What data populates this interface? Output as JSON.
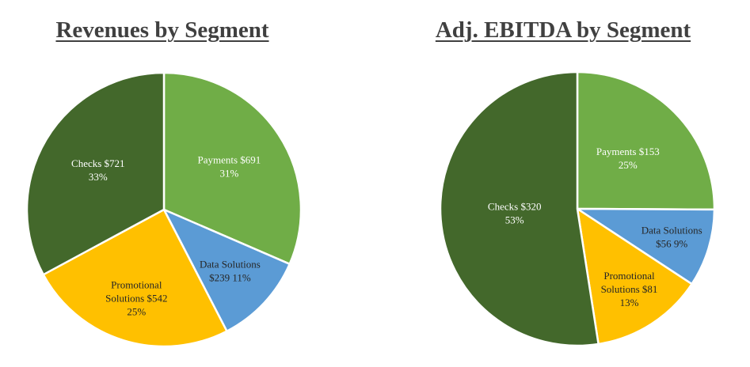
{
  "chart_data": [
    {
      "type": "pie",
      "title": "Revenues by Segment",
      "slices": [
        {
          "name": "Payments",
          "value": 691,
          "percent": "31%",
          "label_lines": [
            "Payments $691",
            "31%"
          ],
          "color": "#70ad47",
          "label_color": "#ffffff"
        },
        {
          "name": "Data Solutions",
          "value": 239,
          "percent": "11%",
          "label_lines": [
            "Data Solutions",
            "$239  11%"
          ],
          "color": "#5b9bd5",
          "label_color": "#262626"
        },
        {
          "name": "Promotional Solutions",
          "value": 542,
          "percent": "25%",
          "label_lines": [
            "Promotional",
            "Solutions $542",
            "25%"
          ],
          "color": "#ffc000",
          "label_color": "#262626"
        },
        {
          "name": "Checks",
          "value": 721,
          "percent": "33%",
          "label_lines": [
            "Checks $721",
            "33%"
          ],
          "color": "#43682b",
          "label_color": "#ffffff"
        }
      ]
    },
    {
      "type": "pie",
      "title": "Adj. EBITDA by Segment",
      "slices": [
        {
          "name": "Payments",
          "value": 153,
          "percent": "25%",
          "label_lines": [
            "Payments $153",
            "25%"
          ],
          "color": "#70ad47",
          "label_color": "#ffffff"
        },
        {
          "name": "Data Solutions",
          "value": 56,
          "percent": "9%",
          "label_lines": [
            "Data Solutions",
            "$56  9%"
          ],
          "color": "#5b9bd5",
          "label_color": "#262626"
        },
        {
          "name": "Promotional Solutions",
          "value": 81,
          "percent": "13%",
          "label_lines": [
            "Promotional",
            "Solutions $81",
            "13%"
          ],
          "color": "#ffc000",
          "label_color": "#262626"
        },
        {
          "name": "Checks",
          "value": 320,
          "percent": "53%",
          "label_lines": [
            "Checks $320",
            "53%"
          ],
          "color": "#43682b",
          "label_color": "#ffffff"
        }
      ]
    }
  ]
}
